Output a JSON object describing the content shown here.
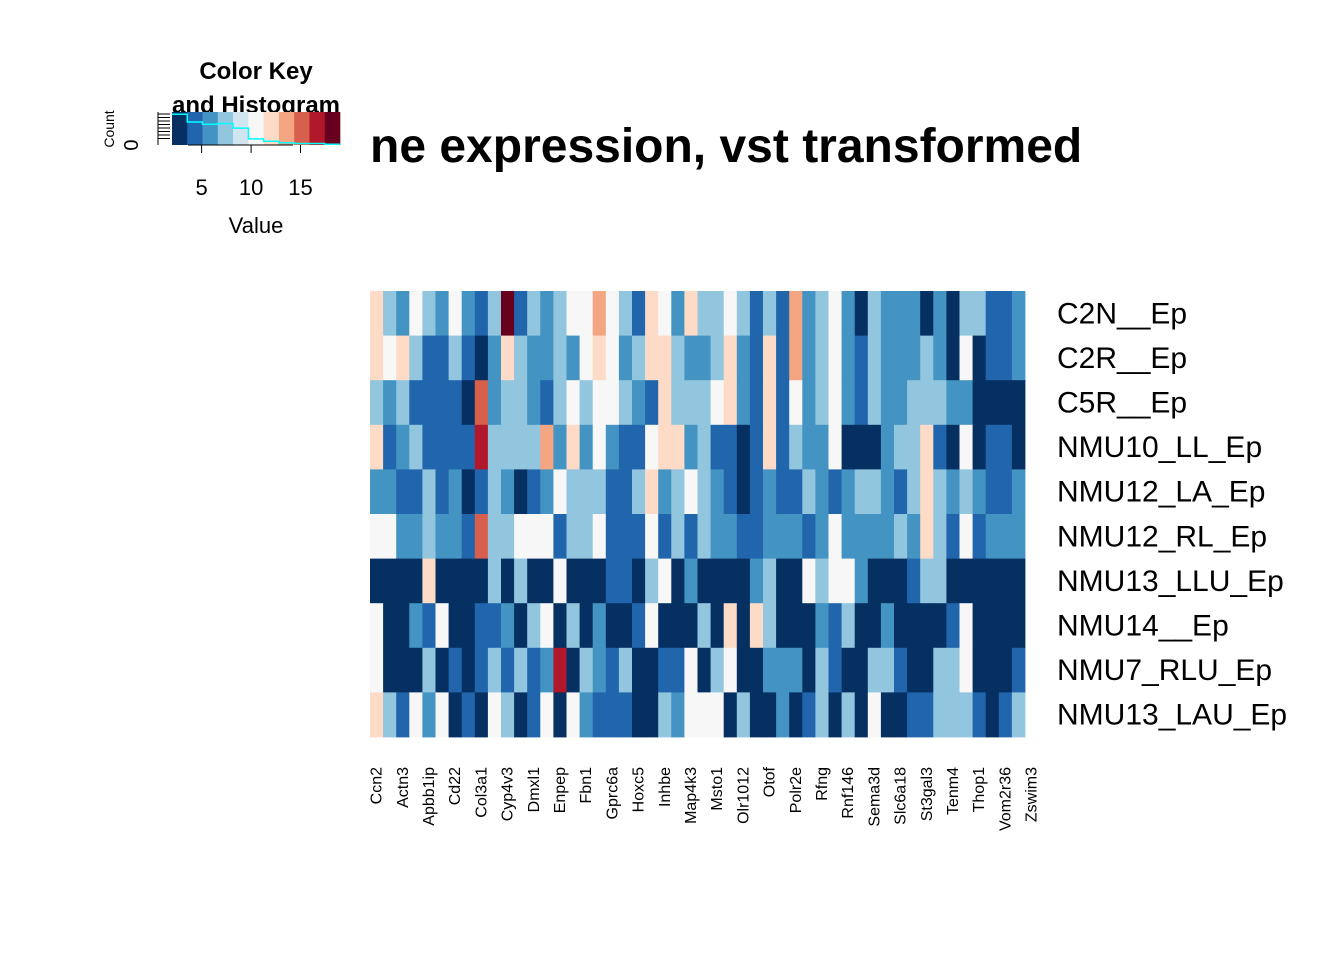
{
  "chart_data": {
    "type": "heatmap",
    "title": "ne expression, vst transformed",
    "rows": [
      "C2N__Ep",
      "C2R__Ep",
      "C5R__Ep",
      "NMU10_LL_Ep",
      "NMU12_LA_Ep",
      "NMU12_RL_Ep",
      "NMU13_LLU_Ep",
      "NMU14__Ep",
      "NMU7_RLU_Ep",
      "NMU13_LAU_Ep"
    ],
    "column_labels_shown": [
      "Ccn2",
      "Actn3",
      "Apbb1ip",
      "Cd22",
      "Col3a1",
      "Cyp4v3",
      "Dmxl1",
      "Enpep",
      "Fbn1",
      "Gprc6a",
      "Hoxc5",
      "Inhbe",
      "Map4k3",
      "Msto1",
      "Olr1012",
      "Otof",
      "Polr2e",
      "Rfng",
      "Rnf146",
      "Sema3d",
      "Slc6a18",
      "St3gal3",
      "Tenm4",
      "Thop1",
      "Vom2r36",
      "Zswim3"
    ],
    "n_columns": 50,
    "approx_values": [
      [
        12,
        8,
        6,
        10,
        8,
        6,
        10,
        6,
        4,
        8,
        18,
        4,
        8,
        6,
        8,
        10,
        10,
        14,
        10,
        8,
        4,
        12,
        10,
        6,
        12,
        8,
        8,
        10,
        8,
        4,
        8,
        4,
        14,
        6,
        8,
        10,
        6,
        2,
        8,
        6,
        6,
        6,
        2,
        6,
        2,
        8,
        8,
        4,
        4,
        6
      ],
      [
        12,
        10,
        12,
        8,
        5,
        4,
        8,
        4,
        2,
        6,
        12,
        8,
        6,
        6,
        8,
        6,
        10,
        12,
        10,
        6,
        8,
        12,
        12,
        8,
        6,
        6,
        8,
        12,
        6,
        4,
        12,
        4,
        14,
        6,
        8,
        10,
        6,
        4,
        8,
        6,
        6,
        6,
        8,
        6,
        2,
        10,
        2,
        4,
        4,
        6
      ],
      [
        8,
        6,
        8,
        4,
        4,
        4,
        4,
        2,
        15,
        6,
        8,
        8,
        6,
        4,
        8,
        10,
        8,
        10,
        10,
        8,
        6,
        4,
        12,
        8,
        8,
        8,
        10,
        12,
        6,
        4,
        12,
        4,
        10,
        6,
        8,
        10,
        6,
        4,
        8,
        6,
        6,
        8,
        8,
        8,
        6,
        6,
        2,
        2,
        2,
        2
      ],
      [
        12,
        4,
        6,
        8,
        4,
        4,
        4,
        4,
        16,
        8,
        8,
        8,
        8,
        14,
        6,
        12,
        6,
        10,
        6,
        4,
        4,
        10,
        12,
        12,
        6,
        8,
        4,
        4,
        2,
        4,
        12,
        4,
        8,
        6,
        6,
        10,
        2,
        2,
        2,
        6,
        8,
        8,
        12,
        4,
        2,
        10,
        2,
        4,
        4,
        2
      ],
      [
        6,
        6,
        4,
        4,
        8,
        4,
        6,
        2,
        4,
        8,
        6,
        2,
        4,
        6,
        10,
        8,
        8,
        8,
        4,
        4,
        8,
        12,
        6,
        8,
        10,
        8,
        6,
        4,
        2,
        4,
        6,
        4,
        4,
        8,
        6,
        4,
        6,
        8,
        8,
        6,
        4,
        8,
        12,
        8,
        6,
        8,
        6,
        4,
        4,
        6
      ],
      [
        10,
        10,
        6,
        6,
        8,
        6,
        6,
        4,
        15,
        8,
        8,
        10,
        10,
        10,
        4,
        8,
        8,
        10,
        4,
        4,
        4,
        10,
        4,
        8,
        4,
        8,
        6,
        6,
        4,
        4,
        6,
        6,
        6,
        4,
        6,
        10,
        6,
        6,
        6,
        6,
        8,
        6,
        12,
        8,
        4,
        10,
        4,
        6,
        6,
        6
      ],
      [
        2,
        2,
        2,
        2,
        12,
        2,
        2,
        2,
        2,
        8,
        2,
        8,
        2,
        2,
        10,
        2,
        2,
        2,
        4,
        4,
        2,
        8,
        10,
        2,
        6,
        2,
        2,
        2,
        2,
        6,
        8,
        2,
        2,
        10,
        8,
        10,
        10,
        6,
        2,
        2,
        2,
        4,
        8,
        8,
        2,
        2,
        2,
        2,
        2,
        2
      ],
      [
        10,
        2,
        2,
        6,
        4,
        10,
        2,
        2,
        4,
        4,
        6,
        2,
        8,
        10,
        2,
        8,
        2,
        6,
        2,
        2,
        4,
        10,
        2,
        2,
        2,
        8,
        2,
        12,
        2,
        12,
        8,
        2,
        2,
        2,
        6,
        4,
        8,
        2,
        2,
        6,
        2,
        2,
        2,
        2,
        4,
        10,
        2,
        2,
        2,
        2
      ],
      [
        10,
        2,
        2,
        2,
        8,
        2,
        4,
        2,
        4,
        8,
        4,
        8,
        4,
        6,
        16,
        2,
        8,
        6,
        4,
        8,
        2,
        2,
        4,
        4,
        10,
        2,
        8,
        10,
        2,
        2,
        6,
        6,
        6,
        2,
        8,
        4,
        2,
        2,
        8,
        8,
        4,
        2,
        2,
        8,
        8,
        10,
        2,
        2,
        2,
        4
      ],
      [
        12,
        8,
        4,
        10,
        6,
        10,
        2,
        4,
        2,
        10,
        8,
        2,
        4,
        10,
        2,
        10,
        6,
        4,
        4,
        4,
        2,
        2,
        8,
        6,
        10,
        10,
        10,
        2,
        8,
        2,
        2,
        6,
        2,
        4,
        8,
        2,
        8,
        2,
        10,
        2,
        2,
        4,
        4,
        8,
        8,
        8,
        4,
        2,
        4,
        8
      ]
    ],
    "color_key": {
      "title": "Color Key and Histogram",
      "xlabel": "Value",
      "ylabel": "Count",
      "y_tick": "0",
      "x_ticks": [
        5,
        10,
        15
      ],
      "range": [
        2,
        19
      ],
      "colors": [
        "#053061",
        "#2166ac",
        "#4393c3",
        "#92c5de",
        "#d1e5f0",
        "#f7f7f7",
        "#fddbc7",
        "#f4a582",
        "#d6604d",
        "#b2182b",
        "#67001f"
      ],
      "histogram": [
        4,
        3,
        2.7,
        2.8,
        2.2,
        0.8,
        0.5,
        0.3,
        0.2,
        0.2,
        0.1
      ],
      "density_color": "#00ffff"
    }
  }
}
